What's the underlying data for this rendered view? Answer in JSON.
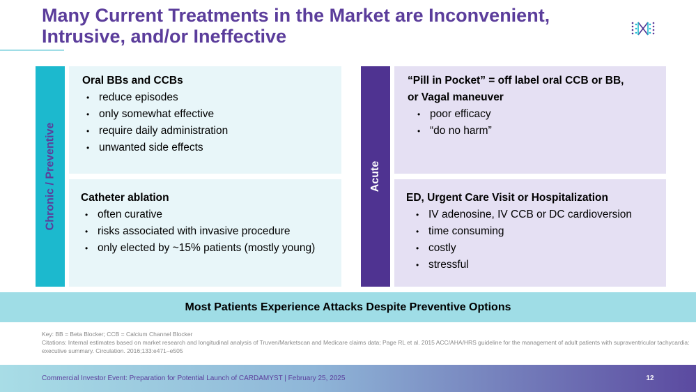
{
  "slide": {
    "title_line1": "Many Current Treatments in the Market are Inconvenient,",
    "title_line2": "Intrusive, and/or Ineffective"
  },
  "chronic": {
    "side_label": "Chronic / Preventive",
    "oral": {
      "heading": "Oral BBs and CCBs",
      "bullets": [
        "reduce episodes",
        "only somewhat effective",
        "require daily administration",
        "unwanted side effects"
      ]
    },
    "ablation": {
      "heading": "Catheter ablation",
      "bullets": [
        "often curative",
        "risks associated with invasive procedure",
        "only elected by ~15% patients (mostly young)"
      ]
    }
  },
  "acute": {
    "side_label": "Acute",
    "pill": {
      "heading_line1": "“Pill in Pocket” = off label oral CCB or BB,",
      "heading_line2": "or Vagal maneuver",
      "bullets": [
        "poor efficacy",
        "“do no harm”"
      ]
    },
    "ed": {
      "heading": "ED, Urgent Care Visit or Hospitalization",
      "bullets": [
        "IV adenosine, IV CCB or DC cardioversion",
        "time consuming",
        "costly",
        "stressful"
      ]
    }
  },
  "banner": {
    "text": "Most Patients Experience Attacks Despite Preventive Options"
  },
  "notes": {
    "key": "Key: BB = Beta Blocker; CCB = Calcium Channel Blocker",
    "citations": "Citations: Internal estimates based on market research and longitudinal analysis of Truven/Marketscan and Medicare claims data; Page RL et al. 2015 ACC/AHA/HRS guideline for the management of adult patients with supraventricular tachycardia: executive summary. Circulation. 2016;133:e471–e505"
  },
  "footer": {
    "text": "Commercial Investor Event: Preparation for Potential Launch of CARDAMYST | February 25, 2025",
    "page_number": "12"
  },
  "colors": {
    "title": "#5b3d9b",
    "teal": "#1cb9ce",
    "purple": "#4f3391",
    "teal_box": "#e8f6f9",
    "lavender_box": "#e5e0f3",
    "banner": "#9fdde6"
  }
}
